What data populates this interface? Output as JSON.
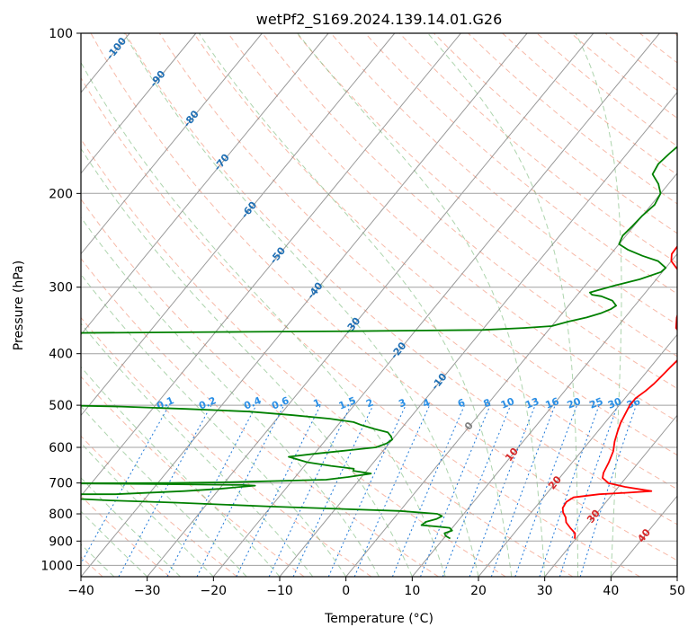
{
  "chart_data": {
    "type": "line",
    "title": "wetPf2_S169.2024.139.14.01.G26",
    "xlabel": "Temperature (°C)",
    "ylabel": "Pressure (hPa)",
    "xlim": [
      -40,
      50
    ],
    "ylim": [
      1050,
      100
    ],
    "y_log_scale": true,
    "grid": true,
    "x_ticks": [
      -40,
      -30,
      -20,
      -10,
      0,
      10,
      20,
      30,
      40,
      50
    ],
    "x_tick_labels": [
      "−40",
      "−30",
      "−20",
      "−10",
      "0",
      "10",
      "20",
      "30",
      "40",
      "50"
    ],
    "y_ticks": [
      100,
      200,
      300,
      400,
      500,
      600,
      700,
      800,
      900,
      1000
    ],
    "y_tick_labels": [
      "100",
      "200",
      "300",
      "400",
      "500",
      "600",
      "700",
      "800",
      "900",
      "1000"
    ],
    "skew_temperature_label_ticks": [
      -100,
      -90,
      -80,
      -70,
      -60,
      -50,
      -40,
      -30,
      -20,
      -10,
      0,
      10,
      20,
      30,
      40
    ],
    "mixing_ratio_labels": [
      "0.1",
      "0.2",
      "0.4",
      "0.6",
      "1",
      "1.5",
      "2",
      "3",
      "4",
      "6",
      "8",
      "10",
      "13",
      "16",
      "20",
      "25",
      "30",
      "36"
    ],
    "mixing_ratio_values": [
      0.1,
      0.2,
      0.4,
      0.6,
      1,
      1.5,
      2,
      3,
      4,
      6,
      8,
      10,
      13,
      16,
      20,
      25,
      30,
      36
    ],
    "series": [
      {
        "color": "#ff0000",
        "points": [
          [
            29.8,
            890
          ],
          [
            29.2,
            870
          ],
          [
            27.8,
            850
          ],
          [
            26.5,
            830
          ],
          [
            25.8,
            812
          ],
          [
            24.8,
            795
          ],
          [
            24.2,
            780
          ],
          [
            24.0,
            760
          ],
          [
            24.5,
            745
          ],
          [
            28.0,
            735
          ],
          [
            32.0,
            730
          ],
          [
            35.5,
            725
          ],
          [
            31.0,
            712
          ],
          [
            28.0,
            700
          ],
          [
            26.5,
            685
          ],
          [
            26.0,
            670
          ],
          [
            25.5,
            640
          ],
          [
            24.8,
            610
          ],
          [
            23.8,
            585
          ],
          [
            23.0,
            560
          ],
          [
            22.4,
            540
          ],
          [
            22.0,
            520
          ],
          [
            21.6,
            500
          ],
          [
            21.6,
            485
          ],
          [
            22.2,
            470
          ],
          [
            22.6,
            455
          ],
          [
            22.8,
            440
          ],
          [
            23.0,
            425
          ],
          [
            23.2,
            412
          ],
          [
            24.8,
            405
          ],
          [
            27.0,
            395
          ],
          [
            26.0,
            388
          ],
          [
            24.0,
            382
          ],
          [
            22.0,
            375
          ],
          [
            20.5,
            368
          ],
          [
            19.0,
            358
          ],
          [
            17.8,
            342
          ],
          [
            16.9,
            325
          ],
          [
            15.8,
            305
          ],
          [
            14.0,
            290
          ],
          [
            12.0,
            278
          ],
          [
            10.0,
            268
          ],
          [
            9.2,
            260
          ],
          [
            9.0,
            245
          ],
          [
            8.8,
            235
          ],
          [
            7.6,
            222
          ],
          [
            5.8,
            210
          ],
          [
            4.0,
            200
          ],
          [
            2.8,
            190
          ],
          [
            1.8,
            176
          ],
          [
            0.8,
            162
          ],
          [
            -0.3,
            150
          ],
          [
            0.5,
            138
          ],
          [
            1.5,
            130
          ],
          [
            1.6,
            120
          ],
          [
            2.2,
            112
          ],
          [
            2.6,
            106
          ],
          [
            3.5,
            100
          ]
        ]
      },
      {
        "color": "#008000",
        "points": [
          [
            11.0,
            890
          ],
          [
            10.0,
            880
          ],
          [
            9.5,
            870
          ],
          [
            10.3,
            860
          ],
          [
            9.6,
            850
          ],
          [
            7.5,
            845
          ],
          [
            5.0,
            840
          ],
          [
            5.3,
            828
          ],
          [
            6.5,
            818
          ],
          [
            7.0,
            808
          ],
          [
            6.0,
            800
          ],
          [
            0.0,
            790
          ],
          [
            -20.0,
            775
          ],
          [
            -35.0,
            762
          ],
          [
            -45.0,
            755
          ],
          [
            -55.0,
            745
          ],
          [
            -65.0,
            735
          ],
          [
            -45.0,
            735
          ],
          [
            -35.0,
            725
          ],
          [
            -30.0,
            718
          ],
          [
            -27.0,
            712
          ],
          [
            -25.0,
            708
          ],
          [
            -27.0,
            706
          ],
          [
            -40.0,
            703
          ],
          [
            -55.0,
            701
          ],
          [
            -38.0,
            700
          ],
          [
            -30.0,
            698
          ],
          [
            -15.0,
            690
          ],
          [
            -12.0,
            682
          ],
          [
            -9.0,
            672
          ],
          [
            -12.0,
            664
          ],
          [
            -12.2,
            658
          ],
          [
            -16.0,
            650
          ],
          [
            -20.0,
            640
          ],
          [
            -23.5,
            625
          ],
          [
            -20.0,
            617
          ],
          [
            -15.0,
            607
          ],
          [
            -11.5,
            600
          ],
          [
            -10.4,
            590
          ],
          [
            -10.0,
            580
          ],
          [
            -10.6,
            572
          ],
          [
            -11.6,
            562
          ],
          [
            -14.0,
            554
          ],
          [
            -16.4,
            545
          ],
          [
            -18.0,
            538
          ],
          [
            -22.0,
            530
          ],
          [
            -28.0,
            522
          ],
          [
            -35.0,
            514
          ],
          [
            -45.0,
            508
          ],
          [
            -55.0,
            503
          ],
          [
            -65.0,
            500
          ],
          [
            -80.0,
            498
          ],
          [
            -100.0,
            497
          ],
          [
            -100.0,
            370
          ],
          [
            -90.0,
            368
          ],
          [
            -75.0,
            366
          ],
          [
            -60.0,
            365
          ],
          [
            -45.0,
            364
          ],
          [
            -30.0,
            363
          ],
          [
            -20.0,
            362
          ],
          [
            -10.0,
            361
          ],
          [
            -4.0,
            358
          ],
          [
            0.0,
            355
          ],
          [
            2.0,
            348
          ],
          [
            4.2,
            342
          ],
          [
            5.8,
            336
          ],
          [
            6.8,
            330
          ],
          [
            7.2,
            325
          ],
          [
            6.0,
            318
          ],
          [
            3.8,
            312
          ],
          [
            2.2,
            310
          ],
          [
            1.6,
            307
          ],
          [
            2.5,
            304
          ],
          [
            4.5,
            298
          ],
          [
            7.5,
            290
          ],
          [
            9.8,
            281
          ],
          [
            10.0,
            276
          ],
          [
            8.0,
            268
          ],
          [
            5.0,
            262
          ],
          [
            2.0,
            255
          ],
          [
            0.0,
            249
          ],
          [
            -0.5,
            240
          ],
          [
            -0.2,
            230
          ],
          [
            0.0,
            220
          ],
          [
            0.5,
            210
          ],
          [
            0.0,
            200
          ],
          [
            -1.5,
            192
          ],
          [
            -3.6,
            184
          ],
          [
            -4.0,
            176
          ],
          [
            -3.6,
            168
          ],
          [
            -3.0,
            160
          ],
          [
            -2.4,
            150
          ],
          [
            -1.2,
            142
          ],
          [
            -0.8,
            134
          ],
          [
            -0.5,
            126
          ],
          [
            -1.4,
            118
          ],
          [
            -1.2,
            113
          ],
          [
            0.0,
            108
          ],
          [
            2.5,
            100
          ]
        ]
      }
    ]
  }
}
